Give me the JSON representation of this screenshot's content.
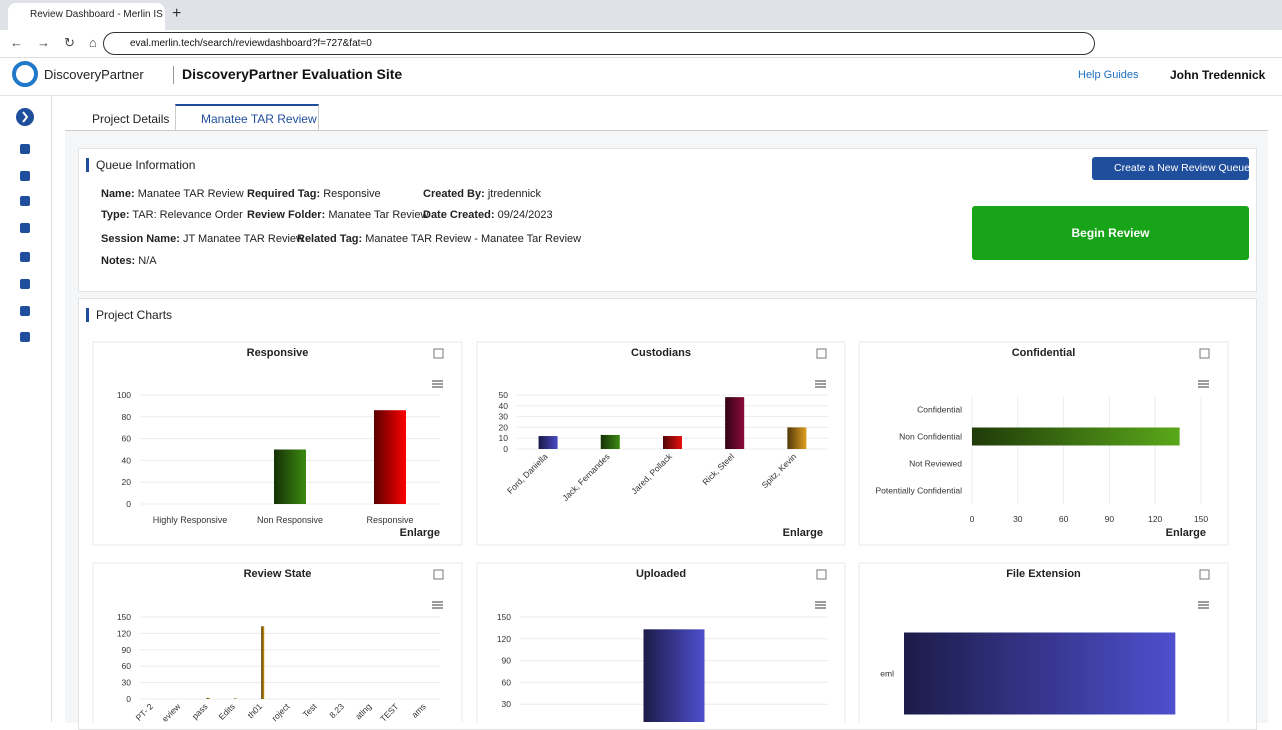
{
  "browser": {
    "tab_title": "Review Dashboard - Merlin IS",
    "url": "eval.merlin.tech/search/reviewdashboard?f=727&fat=0"
  },
  "header": {
    "logo": "DiscoveryPartner",
    "site_title": "DiscoveryPartner Evaluation Site",
    "help": "Help Guides",
    "user": "John Tredennick"
  },
  "tabs": [
    "Project Details",
    "Manatee TAR Review"
  ],
  "queue": {
    "title": "Queue Information",
    "create_button": "Create a New Review Queue",
    "begin_button": "Begin Review",
    "fields": [
      {
        "label": "Name:",
        "value": "Manatee TAR Review"
      },
      {
        "label": "Required Tag:",
        "value": "Responsive"
      },
      {
        "label": "Created By:",
        "value": "jtredennick"
      },
      {
        "label": "Type:",
        "value": "TAR: Relevance Order"
      },
      {
        "label": "Review Folder:",
        "value": "Manatee Tar Review"
      },
      {
        "label": "Date Created:",
        "value": "09/24/2023"
      },
      {
        "label": "Session Name:",
        "value": "JT Manatee TAR Review"
      },
      {
        "label": "Related Tag:",
        "value": "Manatee TAR Review - Manatee Tar Review"
      },
      {
        "label": "Notes:",
        "value": "N/A"
      }
    ]
  },
  "charts_title": "Project Charts",
  "chart_data": [
    {
      "type": "bar",
      "title": "Responsive",
      "categories": [
        "Highly Responsive",
        "Non Responsive",
        "Responsive"
      ],
      "values": [
        0,
        50,
        86
      ],
      "colors": [
        "#3d8a12",
        "#3d8a12",
        "#ff0000"
      ],
      "ylim": [
        0,
        100
      ],
      "yticks": [
        0,
        20,
        40,
        60,
        80,
        100
      ],
      "grid": true,
      "link": "Enlarge"
    },
    {
      "type": "bar",
      "title": "Custodians",
      "categories": [
        "Ford, Daniella",
        "Jack, Fernandes",
        "Jared, Pollack",
        "Rick, Steel",
        "Spitz, Kevin"
      ],
      "values": [
        12,
        13,
        12,
        48,
        20
      ],
      "colors": [
        "#4a4ac8",
        "#3d8a12",
        "#e81010",
        "#8b0a3a",
        "#e0a020"
      ],
      "ylim": [
        0,
        50
      ],
      "yticks": [
        0,
        10,
        20,
        30,
        40,
        50
      ],
      "grid": true,
      "link": "Enlarge"
    },
    {
      "type": "hbar",
      "title": "Confidential",
      "categories": [
        "Confidential",
        "Non Confidential",
        "Not Reviewed",
        "Potentially Confidential"
      ],
      "values": [
        0,
        136,
        0,
        0
      ],
      "colors": [
        "#5aa81a",
        "#5aa81a",
        "#5aa81a",
        "#5aa81a"
      ],
      "xlim": [
        0,
        150
      ],
      "xticks": [
        0,
        30,
        60,
        90,
        120,
        150
      ],
      "grid": true,
      "link": "Enlarge"
    },
    {
      "type": "bar",
      "title": "Review State",
      "categories": [
        "PT- 2",
        "eview",
        "pass",
        "Edits",
        "th01",
        "roject",
        "Test",
        "8.23",
        "ating",
        "TEST",
        "ams"
      ],
      "values": [
        0,
        0,
        2,
        1,
        133,
        0,
        0,
        0,
        0,
        0,
        0
      ],
      "colors": [
        "#d49a10",
        "#d49a10",
        "#d49a10",
        "#d49a10",
        "#d49a10",
        "#d49a10",
        "#d49a10",
        "#d49a10",
        "#d49a10",
        "#d49a10",
        "#d49a10"
      ],
      "ylim": [
        0,
        150
      ],
      "yticks": [
        0,
        30,
        60,
        90,
        120,
        150
      ],
      "grid": true
    },
    {
      "type": "bar",
      "title": "Uploaded",
      "categories": [
        null
      ],
      "values": [
        133
      ],
      "colors": [
        "#4f4fcf"
      ],
      "ylim": [
        0,
        150
      ],
      "yticks": [
        30,
        60,
        90,
        120,
        150
      ],
      "grid": true
    },
    {
      "type": "hbar",
      "title": "File Extension",
      "categories": [
        "eml"
      ],
      "values": [
        133
      ],
      "colors": [
        "#4f4fcf"
      ],
      "xlim": [
        0,
        150
      ],
      "grid": false
    }
  ]
}
